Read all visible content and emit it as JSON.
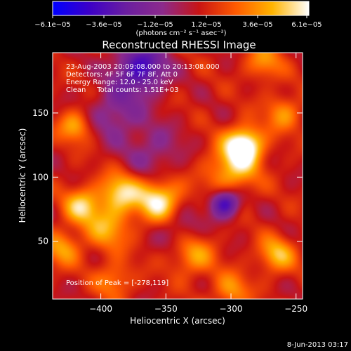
{
  "chart_data": {
    "type": "heatmap",
    "title": "Reconstructed RHESSI Image",
    "xlabel": "Heliocentric X (arcsec)",
    "ylabel": "Heliocentric Y (arcsec)",
    "xlim": [
      -437,
      -245
    ],
    "ylim": [
      5,
      197
    ],
    "x_ticks": [
      -400,
      -350,
      -300,
      -250
    ],
    "x_tick_labels": [
      "−400",
      "−350",
      "−300",
      "−250"
    ],
    "y_ticks": [
      50,
      100,
      150
    ],
    "y_tick_labels": [
      "50",
      "100",
      "150"
    ],
    "colorbar": {
      "range": [
        -6.1e-05,
        6.1e-05
      ],
      "tick_labels": [
        "−6.1e−05",
        "−3.6e−05",
        "−1.2e−05",
        "1.2e−05",
        "3.6e−05",
        "6.1e−05"
      ],
      "unit_label": "(photons cm⁻² s⁻¹ asec⁻²)",
      "stops": [
        "#0000ff",
        "#3c00c8",
        "#6a1ea0",
        "#8c2a8c",
        "#c81414",
        "#ff5a00",
        "#ffb400",
        "#ffffff"
      ]
    },
    "info_lines": [
      "23-Aug-2003 20:09:08.000 to 20:13:08.000",
      "Detectors: 4F 5F 6F 7F 8F, Att 0",
      "Energy Range: 12.0 - 25.0 keV",
      "Clean     Total counts: 1.51E+03"
    ],
    "peak_label": "Position of Peak = [-278,119]",
    "sources": [
      {
        "x": -290,
        "y": 125,
        "value": 6.1e-05,
        "sigma": 10
      },
      {
        "x": -300,
        "y": 105,
        "value": 3.5e-05,
        "sigma": 14
      },
      {
        "x": -355,
        "y": 82,
        "value": 5e-05,
        "sigma": 12
      },
      {
        "x": -385,
        "y": 88,
        "value": 4.2e-05,
        "sigma": 11
      },
      {
        "x": -415,
        "y": 78,
        "value": 3.8e-05,
        "sigma": 10
      },
      {
        "x": -395,
        "y": 60,
        "value": 3e-05,
        "sigma": 12
      },
      {
        "x": -420,
        "y": 140,
        "value": 3.2e-05,
        "sigma": 9
      },
      {
        "x": -330,
        "y": 40,
        "value": 3e-05,
        "sigma": 12
      },
      {
        "x": -265,
        "y": 40,
        "value": 3.4e-05,
        "sigma": 10
      },
      {
        "x": -430,
        "y": 45,
        "value": 2.8e-05,
        "sigma": 10
      },
      {
        "x": -390,
        "y": 20,
        "value": 2.4e-05,
        "sigma": 10
      },
      {
        "x": -300,
        "y": 12,
        "value": 2.6e-05,
        "sigma": 10
      },
      {
        "x": -260,
        "y": 150,
        "value": 2.6e-05,
        "sigma": 10
      },
      {
        "x": -275,
        "y": 190,
        "value": 2.6e-05,
        "sigma": 10
      },
      {
        "x": -370,
        "y": 185,
        "value": -5e-05,
        "sigma": 14
      },
      {
        "x": -390,
        "y": 150,
        "value": -2.5e-05,
        "sigma": 14
      },
      {
        "x": -305,
        "y": 80,
        "value": -5.5e-05,
        "sigma": 8
      },
      {
        "x": -360,
        "y": 120,
        "value": -2e-05,
        "sigma": 16
      },
      {
        "x": -340,
        "y": 60,
        "value": -2e-05,
        "sigma": 12
      }
    ]
  },
  "footer": {
    "date": "8-Jun-2013 03:17"
  }
}
